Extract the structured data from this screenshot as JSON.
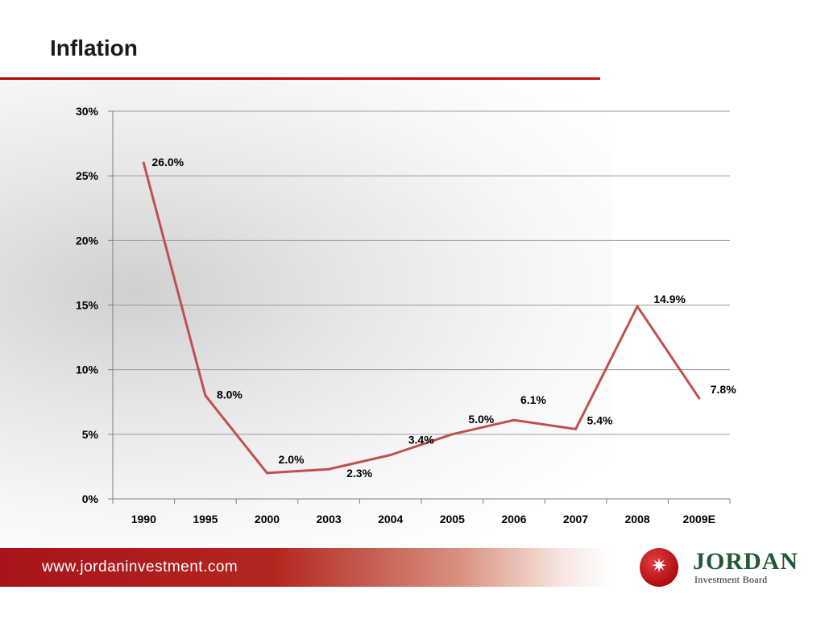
{
  "slide": {
    "title": "Inflation"
  },
  "footer": {
    "url": "www.jordaninvestment.com"
  },
  "logo": {
    "name": "JORDAN",
    "subtitle": "Investment Board",
    "mark": "star-icon"
  },
  "colors": {
    "line": "#c0504d",
    "accent": "#c00000",
    "grid": "#9a9a9a",
    "brand_green": "#1e5a33"
  },
  "chart_data": {
    "type": "line",
    "title": "",
    "xlabel": "",
    "ylabel": "",
    "categories": [
      "1990",
      "1995",
      "2000",
      "2003",
      "2004",
      "2005",
      "2006",
      "2007",
      "2008",
      "2009E"
    ],
    "series": [
      {
        "name": "Inflation",
        "values": [
          26.0,
          8.0,
          2.0,
          2.3,
          3.4,
          5.0,
          6.1,
          5.4,
          14.9,
          7.8
        ]
      }
    ],
    "data_labels": [
      "26.0%",
      "8.0%",
      "2.0%",
      "2.3%",
      "3.4%",
      "5.0%",
      "6.1%",
      "5.4%",
      "14.9%",
      "7.8%"
    ],
    "ylim": [
      0,
      30
    ],
    "yticks": [
      0,
      5,
      10,
      15,
      20,
      25,
      30
    ],
    "ytick_labels": [
      "0%",
      "5%",
      "10%",
      "15%",
      "20%",
      "25%",
      "30%"
    ],
    "grid": true,
    "legend": "none"
  }
}
